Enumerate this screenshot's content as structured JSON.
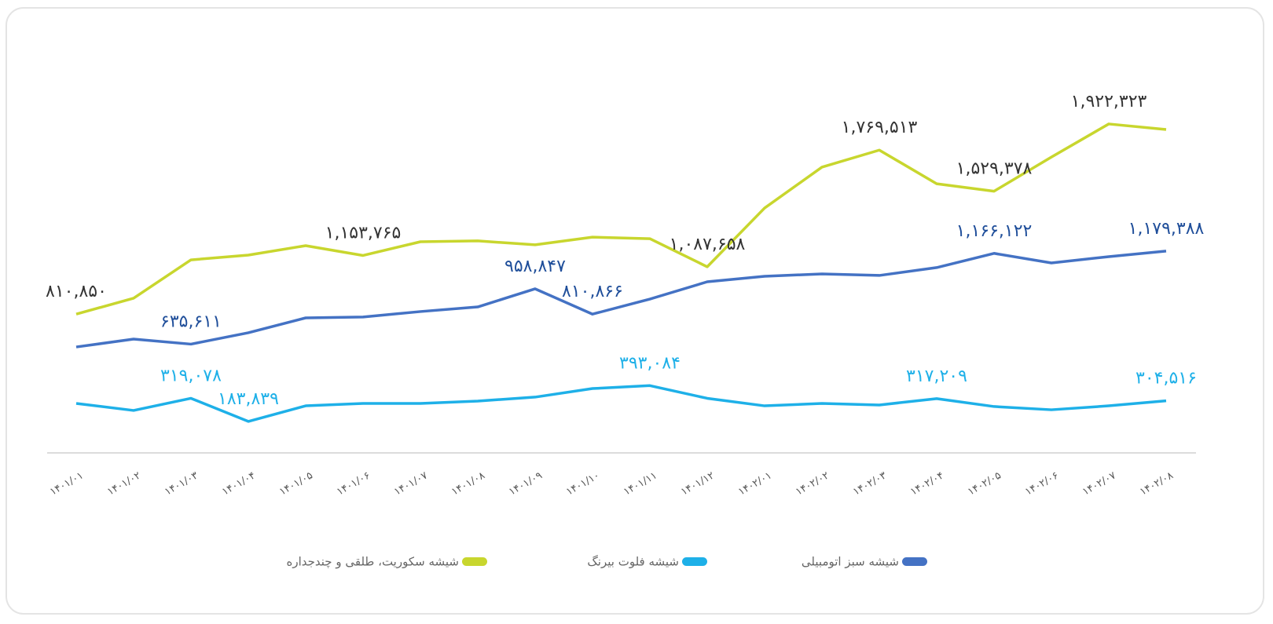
{
  "chart_data": {
    "type": "line",
    "categories": [
      "۱۴۰۱/۰۱",
      "۱۴۰۱/۰۲",
      "۱۴۰۱/۰۳",
      "۱۴۰۱/۰۴",
      "۱۴۰۱/۰۵",
      "۱۴۰۱/۰۶",
      "۱۴۰۱/۰۷",
      "۱۴۰۱/۰۸",
      "۱۴۰۱/۰۹",
      "۱۴۰۱/۱۰",
      "۱۴۰۱/۱۱",
      "۱۴۰۱/۱۲",
      "۱۴۰۲/۰۱",
      "۱۴۰۲/۰۲",
      "۱۴۰۲/۰۳",
      "۱۴۰۲/۰۴",
      "۱۴۰۲/۰۵",
      "۱۴۰۲/۰۶",
      "۱۴۰۲/۰۷",
      "۱۴۰۲/۰۸"
    ],
    "ylim": [
      0,
      2000000
    ],
    "series": [
      {
        "name": "شیشه سبز اتومبیلی",
        "color": "#4472c4",
        "label_color": "#1f4e9a",
        "values": [
          619000,
          665000,
          635611,
          702000,
          789000,
          794000,
          826000,
          853000,
          958847,
          810866,
          899000,
          1000000,
          1032000,
          1046000,
          1037000,
          1083000,
          1166122,
          1110000,
          1147000,
          1179388
        ],
        "value_labels": [
          null,
          null,
          "۶۳۵,۶۱۱",
          null,
          null,
          null,
          null,
          null,
          "۹۵۸,۸۴۷",
          "۸۱۰,۸۶۶",
          null,
          null,
          null,
          null,
          null,
          null,
          "۱,۱۶۶,۱۲۲",
          null,
          null,
          "۱,۱۷۹,۳۸۸"
        ]
      },
      {
        "name": "شیشه فلوت بیرنگ",
        "color": "#1eb0e8",
        "label_color": "#1eb0e8",
        "values": [
          289000,
          248000,
          319078,
          183839,
          275000,
          289000,
          289000,
          303000,
          326000,
          376000,
          393084,
          319000,
          275000,
          289000,
          280000,
          317209,
          271000,
          252000,
          275000,
          304516
        ],
        "value_labels": [
          null,
          null,
          "۳۱۹,۰۷۸",
          "۱۸۳,۸۳۹",
          null,
          null,
          null,
          null,
          null,
          null,
          "۳۹۳,۰۸۴",
          null,
          null,
          null,
          null,
          "۳۱۷,۲۰۹",
          null,
          null,
          null,
          "۳۰۴,۵۱۶"
        ]
      },
      {
        "name": "شیشه سکوریت، طلقی و چندجداره",
        "color": "#c8d62e",
        "label_color": "#333333",
        "values": [
          810850,
          904000,
          1128000,
          1156000,
          1211000,
          1153765,
          1234000,
          1239000,
          1216000,
          1261000,
          1252000,
          1087658,
          1431000,
          1670000,
          1769513,
          1573000,
          1529378,
          1729000,
          1922323,
          1890000
        ],
        "value_labels": [
          "۸۱۰,۸۵۰",
          null,
          null,
          null,
          null,
          "۱,۱۵۳,۷۶۵",
          null,
          null,
          null,
          null,
          null,
          "۱,۰۸۷,۶۵۸",
          null,
          null,
          "۱,۷۶۹,۵۱۳",
          null,
          "۱,۵۲۹,۳۷۸",
          null,
          "۱,۹۲۲,۳۲۳",
          null
        ]
      }
    ]
  }
}
